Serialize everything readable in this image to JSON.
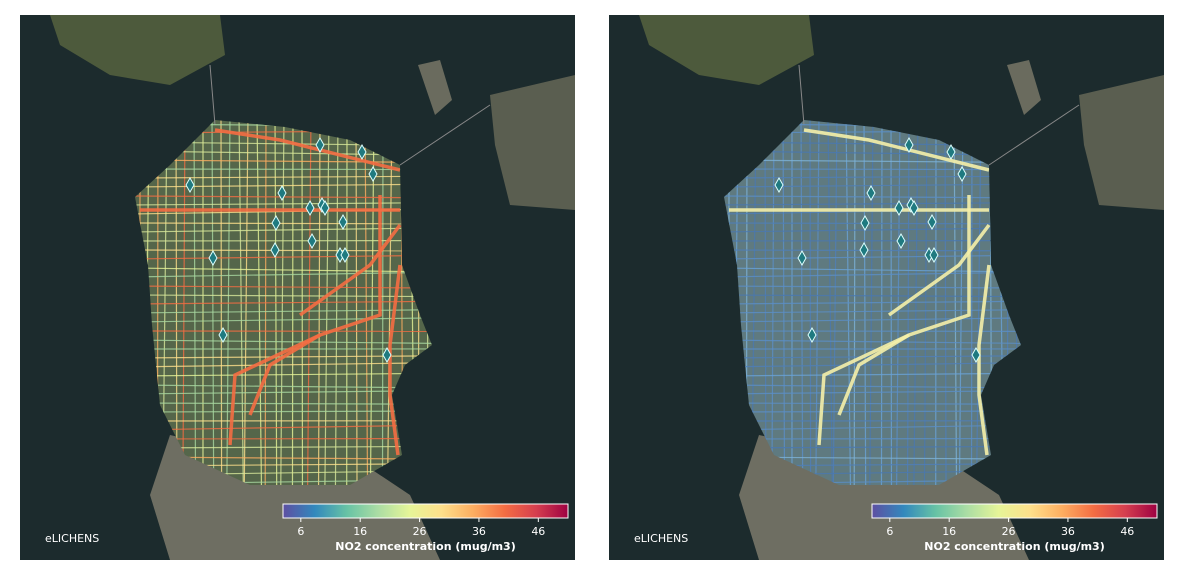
{
  "panels": [
    {
      "colorbar": {
        "range": [
          3,
          51
        ],
        "ticks": [
          6,
          16,
          26,
          36,
          46
        ],
        "label": "NO2 concentration (mug/m3)"
      },
      "logo": "eLICHENS"
    },
    {
      "colorbar": {
        "range": [
          3,
          51
        ],
        "ticks": [
          6,
          16,
          26,
          36,
          46
        ],
        "label": "NO2 concentration (mug/m3)"
      },
      "logo": "eLICHENS"
    }
  ]
}
